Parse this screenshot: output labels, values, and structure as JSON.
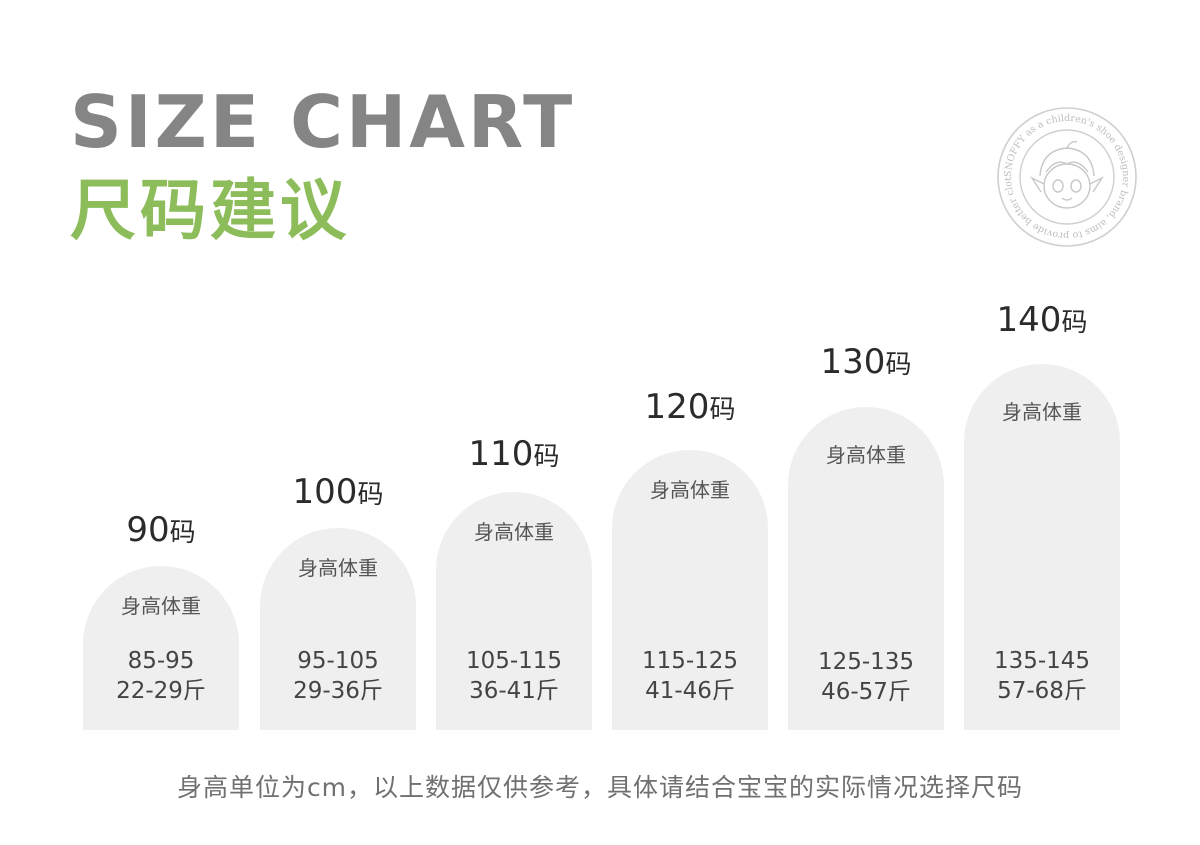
{
  "title_en": "SIZE CHART",
  "title_cn": "尺码建议",
  "seal": {
    "text": "SNOFFY as a children's shoe designer brand, aims to provide better clothing",
    "icon": "cartoon-child-face-icon"
  },
  "column_header": "身高体重",
  "sizes": [
    {
      "num": "90",
      "unit": "码",
      "height_range": "85-95",
      "weight_range": "22-29斤"
    },
    {
      "num": "100",
      "unit": "码",
      "height_range": "95-105",
      "weight_range": "29-36斤"
    },
    {
      "num": "110",
      "unit": "码",
      "height_range": "105-115",
      "weight_range": "36-41斤"
    },
    {
      "num": "120",
      "unit": "码",
      "height_range": "115-125",
      "weight_range": "41-46斤"
    },
    {
      "num": "130",
      "unit": "码",
      "height_range": "125-135",
      "weight_range": "46-57斤"
    },
    {
      "num": "140",
      "unit": "码",
      "height_range": "135-145",
      "weight_range": "57-68斤"
    }
  ],
  "footnote": "身高单位为cm，以上数据仅供参考，具体请结合宝宝的实际情况选择尺码",
  "colors": {
    "title_en": "#858585",
    "title_cn": "#8dbd5a",
    "arch_fill": "#efefef",
    "footnote": "#707070"
  }
}
